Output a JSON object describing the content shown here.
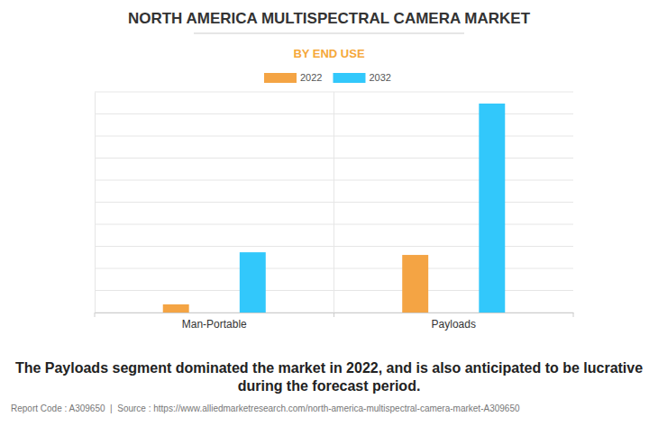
{
  "chart_data": {
    "type": "bar",
    "title": "NORTH AMERICA MULTISPECTRAL CAMERA MARKET",
    "subtitle": "BY END USE",
    "categories": [
      "Man-Portable",
      "Payloads"
    ],
    "series": [
      {
        "name": "2022",
        "color": "#f4a444",
        "values": [
          0.37,
          2.61
        ]
      },
      {
        "name": "2032",
        "color": "#32c8fb",
        "values": [
          2.73,
          9.47
        ]
      }
    ],
    "ylim": [
      0,
      10
    ],
    "yticks": [
      0,
      1,
      2,
      3,
      4,
      5,
      6,
      7,
      8,
      9,
      10
    ],
    "grid": true,
    "tick_labels": "x",
    "legend": "top",
    "annotations": [
      "The Payloads segment dominated the market in 2022, and is also anticipated to be lucrative during the forecast period.",
      "Report Code : A309650  |  Source : https://www.alliedmarketresearch.com/north-america-multispectral-camera-market-A309650"
    ]
  }
}
